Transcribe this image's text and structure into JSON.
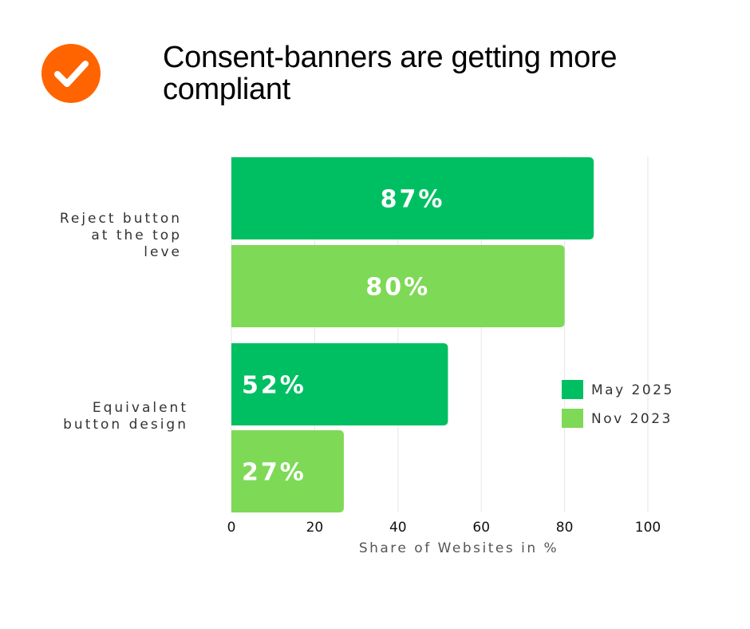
{
  "title": "Consent-banners are getting more compliant",
  "logo_icon": "checkmark-circle-icon",
  "colors": {
    "logo": "#ff6400",
    "may_2025": "#00bf63",
    "nov_2023": "#7ed957",
    "grid": "#e6e6e6"
  },
  "chart_data": {
    "type": "bar",
    "orientation": "horizontal",
    "categories": [
      "Reject button at the top leve",
      "Equivalent button design"
    ],
    "series": [
      {
        "name": "May 2025",
        "values": [
          87,
          52
        ],
        "labels": [
          "87%",
          "52%"
        ]
      },
      {
        "name": "Nov 2023",
        "values": [
          80,
          27
        ],
        "labels": [
          "80%",
          "27%"
        ]
      }
    ],
    "xlabel": "Share of Websites in %",
    "ylabel": "",
    "xlim": [
      0,
      100
    ],
    "xticks": [
      0,
      20,
      40,
      60,
      80,
      100
    ],
    "grid": true,
    "legend": "right"
  }
}
